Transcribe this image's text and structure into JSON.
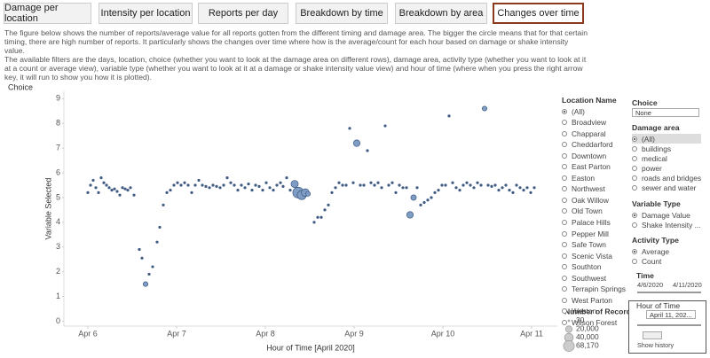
{
  "tabs": [
    {
      "label": "Damage per location"
    },
    {
      "label": "Intensity per location"
    },
    {
      "label": "Reports per day"
    },
    {
      "label": "Breakdown by time"
    },
    {
      "label": "Breakdown by area"
    },
    {
      "label": "Changes over time",
      "active": true
    }
  ],
  "description": [
    "The figure below shows the number of reports/average value for all reports gotten from the different timing and damage area. The bigger the circle means that for that certain timing, there are high number of reports. It particularly shows the changes over time where how is the average/count for each hour based on damage or shake intensity value.",
    "The available filters are the days, location, choice (whether you want to look at the damage area on different rows), damage area, activity type (whether you want to look at it at a count or average view), variable type (whether you want to look at it at a damage or shake intensity value view) and hour of time (where when you press the right arrow key, it will run to show you how it is plotted)."
  ],
  "chart_data": {
    "type": "scatter",
    "title": "Choice",
    "x_label": "Hour of Time [April 2020]",
    "y_label": "Variable Selected",
    "x": [
      6.0,
      6.03,
      6.06,
      6.09,
      6.12,
      6.15,
      6.18,
      6.21,
      6.24,
      6.27,
      6.3,
      6.33,
      6.36,
      6.39,
      6.42,
      6.45,
      6.48,
      6.52,
      6.58,
      6.61,
      6.65,
      6.69,
      6.73,
      6.78,
      6.81,
      6.85,
      6.89,
      6.93,
      6.97,
      7.01,
      7.05,
      7.09,
      7.13,
      7.17,
      7.21,
      7.25,
      7.29,
      7.33,
      7.37,
      7.41,
      7.45,
      7.49,
      7.53,
      7.57,
      7.61,
      7.65,
      7.69,
      7.73,
      7.77,
      7.81,
      7.85,
      7.89,
      7.93,
      7.97,
      8.01,
      8.05,
      8.09,
      8.13,
      8.17,
      8.2,
      8.24,
      8.28,
      8.33,
      8.37,
      8.41,
      8.45,
      8.48,
      8.55,
      8.59,
      8.63,
      8.67,
      8.71,
      8.75,
      8.79,
      8.83,
      8.87,
      8.91,
      8.95,
      8.99,
      9.03,
      9.07,
      9.11,
      9.15,
      9.19,
      9.23,
      9.27,
      9.31,
      9.35,
      9.39,
      9.43,
      9.47,
      9.51,
      9.55,
      9.59,
      9.63,
      9.67,
      9.71,
      9.75,
      9.79,
      9.83,
      9.87,
      9.91,
      9.95,
      9.99,
      10.03,
      10.07,
      10.11,
      10.15,
      10.19,
      10.23,
      10.27,
      10.31,
      10.35,
      10.39,
      10.43,
      10.47,
      10.51,
      10.55,
      10.59,
      10.63,
      10.67,
      10.71,
      10.75,
      10.79,
      10.83,
      10.87,
      10.91,
      10.95,
      10.99,
      11.03
    ],
    "values": [
      5.2,
      5.5,
      5.7,
      5.4,
      5.2,
      5.8,
      5.6,
      5.5,
      5.4,
      5.3,
      5.35,
      5.25,
      5.1,
      5.4,
      5.35,
      5.3,
      5.4,
      5.1,
      2.9,
      2.55,
      1.5,
      1.9,
      2.2,
      3.2,
      3.8,
      4.7,
      5.2,
      5.3,
      5.5,
      5.6,
      5.5,
      5.6,
      5.5,
      5.2,
      5.5,
      5.7,
      5.5,
      5.45,
      5.4,
      5.5,
      5.45,
      5.4,
      5.5,
      5.8,
      5.6,
      5.5,
      5.3,
      5.5,
      5.4,
      5.55,
      5.3,
      5.5,
      5.45,
      5.3,
      5.6,
      5.4,
      5.3,
      5.5,
      5.6,
      5.45,
      5.8,
      5.3,
      5.55,
      5.2,
      5.1,
      5.2,
      5.15,
      4.0,
      4.2,
      4.2,
      4.5,
      4.7,
      5.2,
      5.4,
      5.6,
      5.5,
      5.5,
      7.8,
      5.6,
      7.2,
      5.5,
      5.5,
      6.9,
      5.6,
      5.5,
      5.6,
      5.4,
      7.9,
      5.5,
      5.6,
      5.2,
      5.5,
      5.4,
      5.4,
      4.3,
      5.0,
      5.4,
      4.7,
      4.8,
      4.9,
      5.0,
      5.2,
      5.3,
      5.5,
      5.5,
      8.3,
      5.6,
      5.4,
      5.3,
      5.5,
      5.6,
      5.5,
      5.4,
      5.6,
      5.5,
      8.6,
      5.5,
      5.45,
      5.5,
      5.3,
      5.4,
      5.5,
      5.3,
      5.2,
      5.5,
      5.4,
      5.3,
      5.4,
      5.2,
      5.4
    ],
    "sizes": [
      300,
      300,
      300,
      300,
      300,
      300,
      300,
      300,
      300,
      300,
      300,
      300,
      300,
      300,
      300,
      300,
      300,
      300,
      300,
      300,
      8000,
      300,
      300,
      300,
      300,
      300,
      300,
      300,
      300,
      300,
      300,
      300,
      300,
      300,
      300,
      300,
      300,
      300,
      300,
      300,
      300,
      300,
      300,
      300,
      300,
      300,
      300,
      300,
      300,
      300,
      300,
      300,
      300,
      300,
      300,
      300,
      300,
      300,
      300,
      300,
      300,
      300,
      25000,
      68170,
      45000,
      30000,
      8000,
      300,
      300,
      300,
      300,
      300,
      300,
      300,
      300,
      300,
      300,
      300,
      300,
      20000,
      300,
      300,
      300,
      300,
      300,
      300,
      300,
      300,
      300,
      300,
      300,
      300,
      300,
      300,
      20000,
      12000,
      300,
      300,
      300,
      300,
      300,
      300,
      300,
      300,
      300,
      300,
      300,
      300,
      300,
      300,
      300,
      300,
      300,
      300,
      300,
      8000,
      300,
      300,
      300,
      300,
      300,
      300,
      300,
      300,
      300,
      300,
      300,
      300,
      300,
      300
    ],
    "color": "#7f9cc4",
    "stroke": "#3f5b82",
    "xlim": [
      5.73,
      11.29
    ],
    "ylim": [
      -0.2,
      9.3
    ],
    "xticks": [
      {
        "value": 6,
        "label": "Apr 6"
      },
      {
        "value": 7,
        "label": "Apr 7"
      },
      {
        "value": 8,
        "label": "Apr 8"
      },
      {
        "value": 9,
        "label": "Apr 9"
      },
      {
        "value": 10,
        "label": "Apr 10"
      },
      {
        "value": 11,
        "label": "Apr 11"
      }
    ],
    "yticks": [
      0,
      1,
      2,
      3,
      4,
      5,
      6,
      7,
      8,
      9
    ],
    "size_legend": {
      "title": "Number of Records",
      "values": [
        30,
        {
          "value": 20000,
          "label": "20,000"
        },
        {
          "value": 40000,
          "label": "40,000"
        },
        {
          "value": 68170,
          "label": "68,170"
        }
      ]
    }
  },
  "filters": {
    "location": {
      "title": "Location Name",
      "options": [
        "(All)",
        "Broadview",
        "Chapparal",
        "Cheddarford",
        "Downtown",
        "East Parton",
        "Easton",
        "Northwest",
        "Oak Willow",
        "Old Town",
        "Palace Hills",
        "Pepper Mill",
        "Safe Town",
        "Scenic Vista",
        "Southton",
        "Southwest",
        "Terrapin Springs",
        "West Parton",
        "Weston",
        "Wilson Forest"
      ],
      "selected": 0
    },
    "choice": {
      "title": "Choice",
      "value": "None"
    },
    "damage_area": {
      "title": "Damage area",
      "options": [
        "(All)",
        "buildings",
        "medical",
        "power",
        "roads and bridges",
        "sewer and water"
      ],
      "selected": 0
    },
    "variable_type": {
      "title": "Variable Type",
      "options": [
        "Damage Value",
        "Shake Intensity ..."
      ],
      "selected": 0
    },
    "activity_type": {
      "title": "Activity Type",
      "options": [
        "Average",
        "Count"
      ],
      "selected": 0
    },
    "time": {
      "title": "Time",
      "start": "4/6/2020",
      "end": "4/11/2020"
    },
    "hour_of_time": {
      "title": "Hour of Time",
      "value": "April 11, 202...",
      "history": "Show history"
    }
  }
}
